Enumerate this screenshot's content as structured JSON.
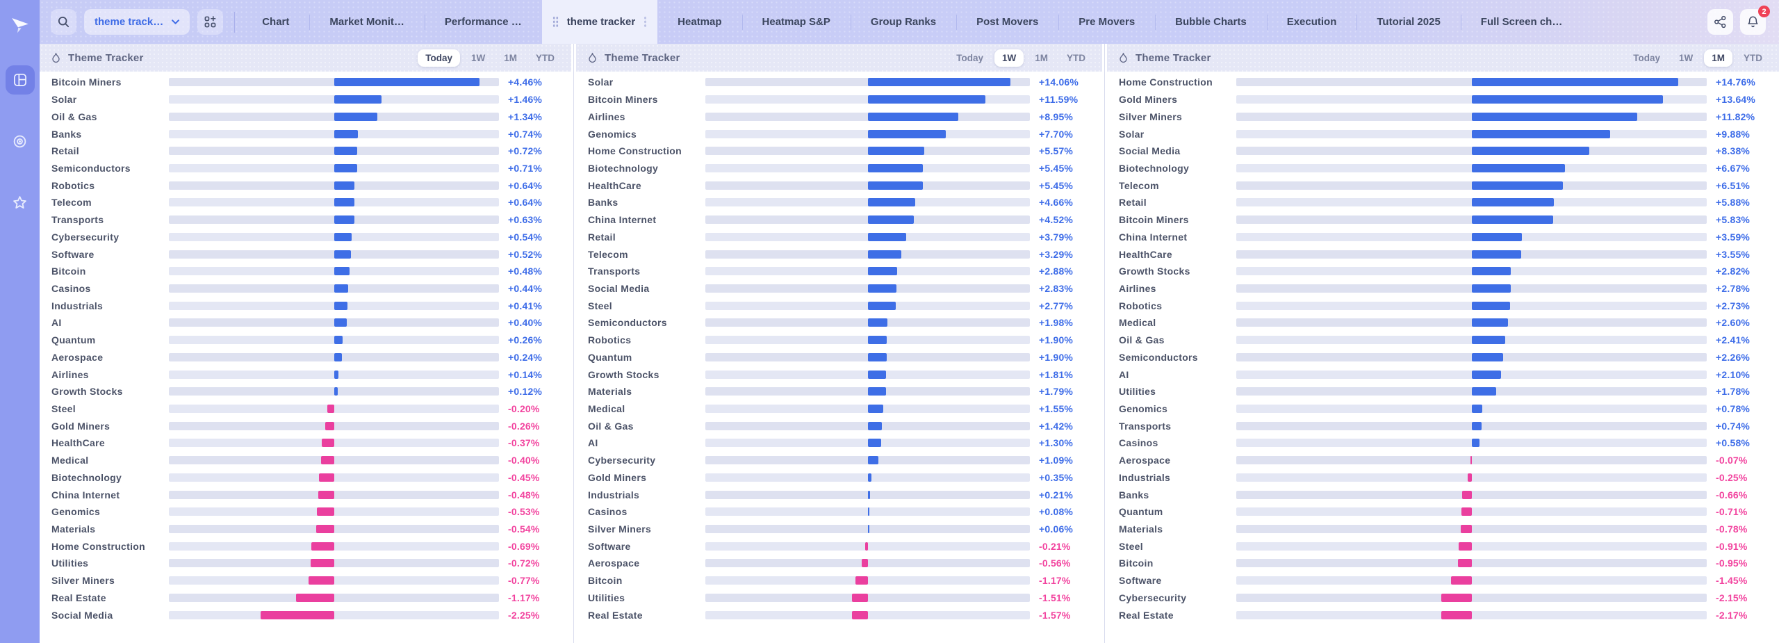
{
  "nav": {
    "dropdown_label": "theme track…",
    "tabs": [
      {
        "label": "Chart",
        "active": false
      },
      {
        "label": "Market Monit…",
        "active": false
      },
      {
        "label": "Performance …",
        "active": false
      },
      {
        "label": "theme tracker",
        "active": true
      },
      {
        "label": "Heatmap",
        "active": false
      },
      {
        "label": "Heatmap S&P",
        "active": false
      },
      {
        "label": "Group Ranks",
        "active": false
      },
      {
        "label": "Post Movers",
        "active": false
      },
      {
        "label": "Pre Movers",
        "active": false
      },
      {
        "label": "Bubble Charts",
        "active": false
      },
      {
        "label": "Execution",
        "active": false
      },
      {
        "label": "Tutorial 2025",
        "active": false
      },
      {
        "label": "Full Screen ch…",
        "active": false
      }
    ],
    "notification_count": "2"
  },
  "colors": {
    "positive": "#3e6ee6",
    "negative": "#ea3f9e",
    "sidebar": "#8f9cf1",
    "topnav": "#c7ccf6",
    "badge": "#ef4156"
  },
  "panels": [
    {
      "title": "Theme Tracker",
      "ranges": [
        "Today",
        "1W",
        "1M",
        "YTD"
      ],
      "active_range": "Today"
    },
    {
      "title": "Theme Tracker",
      "ranges": [
        "Today",
        "1W",
        "1M",
        "YTD"
      ],
      "active_range": "1W"
    },
    {
      "title": "Theme Tracker",
      "ranges": [
        "Today",
        "1W",
        "1M",
        "YTD"
      ],
      "active_range": "1M"
    }
  ],
  "chart_data": [
    {
      "type": "bar",
      "orientation": "horizontal",
      "title": "Theme Tracker",
      "range": "Today",
      "unit": "%",
      "categories": [
        "Bitcoin Miners",
        "Solar",
        "Oil & Gas",
        "Banks",
        "Retail",
        "Semiconductors",
        "Robotics",
        "Telecom",
        "Transports",
        "Cybersecurity",
        "Software",
        "Bitcoin",
        "Casinos",
        "Industrials",
        "AI",
        "Quantum",
        "Aerospace",
        "Airlines",
        "Growth Stocks",
        "Steel",
        "Gold Miners",
        "HealthCare",
        "Medical",
        "Biotechnology",
        "China Internet",
        "Genomics",
        "Materials",
        "Home Construction",
        "Utilities",
        "Silver Miners",
        "Real Estate",
        "Social Media"
      ],
      "values": [
        4.46,
        1.46,
        1.34,
        0.74,
        0.72,
        0.71,
        0.64,
        0.64,
        0.63,
        0.54,
        0.52,
        0.48,
        0.44,
        0.41,
        0.4,
        0.26,
        0.24,
        0.14,
        0.12,
        -0.2,
        -0.26,
        -0.37,
        -0.4,
        -0.45,
        -0.48,
        -0.53,
        -0.54,
        -0.69,
        -0.72,
        -0.77,
        -1.17,
        -2.25
      ]
    },
    {
      "type": "bar",
      "orientation": "horizontal",
      "title": "Theme Tracker",
      "range": "1W",
      "unit": "%",
      "categories": [
        "Solar",
        "Bitcoin Miners",
        "Airlines",
        "Genomics",
        "Home Construction",
        "Biotechnology",
        "HealthCare",
        "Banks",
        "China Internet",
        "Retail",
        "Telecom",
        "Transports",
        "Social Media",
        "Steel",
        "Semiconductors",
        "Robotics",
        "Quantum",
        "Growth Stocks",
        "Materials",
        "Medical",
        "Oil & Gas",
        "AI",
        "Cybersecurity",
        "Gold Miners",
        "Industrials",
        "Casinos",
        "Silver Miners",
        "Software",
        "Aerospace",
        "Bitcoin",
        "Utilities",
        "Real Estate"
      ],
      "values": [
        14.06,
        11.59,
        8.95,
        7.7,
        5.57,
        5.45,
        5.45,
        4.66,
        4.52,
        3.79,
        3.29,
        2.88,
        2.83,
        2.77,
        1.98,
        1.9,
        1.9,
        1.81,
        1.79,
        1.55,
        1.42,
        1.3,
        1.09,
        0.35,
        0.21,
        0.08,
        0.06,
        -0.21,
        -0.56,
        -1.17,
        -1.51,
        -1.57
      ]
    },
    {
      "type": "bar",
      "orientation": "horizontal",
      "title": "Theme Tracker",
      "range": "1M",
      "unit": "%",
      "categories": [
        "Home Construction",
        "Gold Miners",
        "Silver Miners",
        "Solar",
        "Social Media",
        "Biotechnology",
        "Telecom",
        "Retail",
        "Bitcoin Miners",
        "China Internet",
        "HealthCare",
        "Growth Stocks",
        "Airlines",
        "Robotics",
        "Medical",
        "Oil & Gas",
        "Semiconductors",
        "AI",
        "Utilities",
        "Genomics",
        "Transports",
        "Casinos",
        "Aerospace",
        "Industrials",
        "Banks",
        "Quantum",
        "Materials",
        "Steel",
        "Bitcoin",
        "Software",
        "Cybersecurity",
        "Real Estate"
      ],
      "values": [
        14.76,
        13.64,
        11.82,
        9.88,
        8.38,
        6.67,
        6.51,
        5.88,
        5.83,
        3.59,
        3.55,
        2.82,
        2.78,
        2.73,
        2.6,
        2.41,
        2.26,
        2.1,
        1.78,
        0.78,
        0.74,
        0.58,
        -0.07,
        -0.25,
        -0.66,
        -0.71,
        -0.78,
        -0.91,
        -0.95,
        -1.45,
        -2.15,
        -2.17
      ]
    }
  ]
}
